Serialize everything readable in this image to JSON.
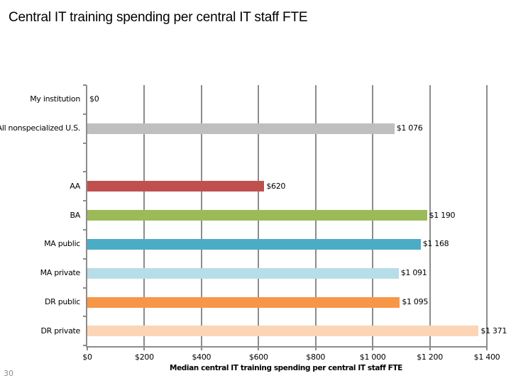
{
  "page": {
    "title": "Central IT training spending per central IT staff FTE",
    "page_number": "30"
  },
  "chart_data": {
    "type": "bar",
    "orientation": "horizontal",
    "title": "Central IT training spending per central IT staff FTE",
    "xlabel": "Median central IT training spending per central IT staff FTE",
    "ylabel": "",
    "xlim": [
      0,
      1400
    ],
    "grid": true,
    "legend": null,
    "x_ticks": [
      "$0",
      "$200",
      "$400",
      "$600",
      "$800",
      "$1 000",
      "$1 200",
      "$1 400"
    ],
    "categories": [
      "My institution",
      "All nonspecialized U.S.",
      "AA",
      "BA",
      "MA public",
      "MA private",
      "DR public",
      "DR private"
    ],
    "values": [
      0,
      1076,
      620,
      1190,
      1168,
      1091,
      1095,
      1371
    ],
    "value_labels": [
      "$0",
      "$1 076",
      "$620",
      "$1 190",
      "$1 168",
      "$1 091",
      "$1 095",
      "$1 371"
    ],
    "colors": [
      "#bfbfbf",
      "#bfbfbf",
      "#c0504d",
      "#9bbb59",
      "#4bacc6",
      "#b7dde8",
      "#f79646",
      "#fbd5b5"
    ],
    "slots": [
      0,
      1,
      3,
      4,
      5,
      6,
      7,
      8
    ]
  },
  "colors": {
    "axis": "#8c8c8c",
    "gridline": "#8c8c8c",
    "page_number": "#8c8c8c"
  }
}
